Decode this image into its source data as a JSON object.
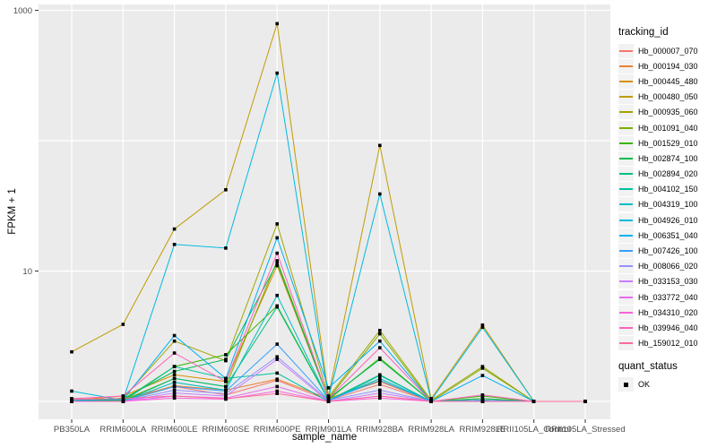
{
  "chart_data": {
    "type": "line",
    "title": "",
    "xlabel": "sample_name",
    "ylabel": "FPKM + 1",
    "y_scale": "log10",
    "ylim": [
      0.72,
      1250
    ],
    "grid": true,
    "y_gridlines": [
      1,
      10,
      100,
      1000
    ],
    "y_axis": {
      "tick_labels": [
        {
          "value": 1000,
          "label": "1000"
        },
        {
          "value": 10,
          "label": "10"
        }
      ]
    },
    "categories": [
      "PB350LA",
      "RRIM600LA",
      "RRIM600LE",
      "RRIM600SE",
      "RRIM600PE",
      "RRIM901LA",
      "RRIM928BA",
      "RRIM928LA",
      "RRIM928LE",
      "RRII105LA_Control",
      "RRII105LA_Stressed"
    ],
    "series": [
      {
        "name": "Hb_000007_070",
        "color": "#F8766D",
        "values": [
          1.02,
          1.05,
          1.3,
          1.12,
          1.45,
          1.02,
          1.35,
          1.0,
          1.02,
          1.0,
          1.0
        ]
      },
      {
        "name": "Hb_000194_030",
        "color": "#EA8331",
        "values": [
          1.0,
          1.02,
          1.32,
          1.22,
          1.48,
          1.05,
          1.42,
          1.0,
          1.0,
          1.0,
          1.0
        ]
      },
      {
        "name": "Hb_000445_480",
        "color": "#D89000",
        "values": [
          1.02,
          1.1,
          1.6,
          1.42,
          11.0,
          1.05,
          1.45,
          1.0,
          1.05,
          1.0,
          1.0
        ]
      },
      {
        "name": "Hb_000480_050",
        "color": "#C09B00",
        "values": [
          2.4,
          3.9,
          21.0,
          42.0,
          790.0,
          1.1,
          92.0,
          1.05,
          3.85,
          1.0,
          1.0
        ]
      },
      {
        "name": "Hb_000935_060",
        "color": "#A3A500",
        "values": [
          1.0,
          1.06,
          2.9,
          2.05,
          23.0,
          1.08,
          3.5,
          1.02,
          1.85,
          1.0,
          1.0
        ]
      },
      {
        "name": "Hb_001091_040",
        "color": "#7CAE00",
        "values": [
          1.0,
          1.02,
          1.5,
          1.3,
          12.0,
          1.05,
          3.3,
          1.0,
          1.8,
          1.0,
          1.0
        ]
      },
      {
        "name": "Hb_001529_010",
        "color": "#39B600",
        "values": [
          1.0,
          1.02,
          1.85,
          2.28,
          5.4,
          1.03,
          2.15,
          1.0,
          1.1,
          1.0,
          1.0
        ]
      },
      {
        "name": "Hb_002874_100",
        "color": "#00BB4E",
        "values": [
          1.0,
          1.05,
          1.7,
          2.1,
          11.5,
          1.05,
          2.1,
          1.0,
          1.05,
          1.0,
          1.0
        ]
      },
      {
        "name": "Hb_002894_020",
        "color": "#00BF7D",
        "values": [
          1.0,
          1.0,
          1.5,
          1.3,
          5.3,
          1.02,
          1.6,
          1.0,
          1.02,
          1.0,
          1.0
        ]
      },
      {
        "name": "Hb_004102_150",
        "color": "#00C1A3",
        "values": [
          1.0,
          1.0,
          1.85,
          1.5,
          1.65,
          1.0,
          1.58,
          1.0,
          1.0,
          1.0,
          1.0
        ]
      },
      {
        "name": "Hb_004319_100",
        "color": "#00BFC4",
        "values": [
          1.0,
          1.0,
          1.4,
          1.22,
          6.5,
          1.02,
          1.5,
          1.0,
          1.0,
          1.0,
          1.0
        ]
      },
      {
        "name": "Hb_004926_010",
        "color": "#00BAE0",
        "values": [
          1.2,
          1.02,
          16.0,
          15.0,
          330.0,
          1.06,
          39.0,
          1.02,
          3.7,
          1.0,
          1.0
        ]
      },
      {
        "name": "Hb_006351_040",
        "color": "#00B0F6",
        "values": [
          1.02,
          1.03,
          3.2,
          1.5,
          18.0,
          1.27,
          2.9,
          1.0,
          1.58,
          1.0,
          1.0
        ]
      },
      {
        "name": "Hb_007426_100",
        "color": "#35A2FF",
        "values": [
          1.0,
          1.0,
          1.3,
          1.2,
          2.75,
          1.02,
          1.45,
          1.0,
          1.02,
          1.0,
          1.0
        ]
      },
      {
        "name": "Hb_008066_020",
        "color": "#9590FF",
        "values": [
          1.0,
          1.0,
          1.22,
          1.15,
          2.2,
          1.02,
          1.22,
          1.0,
          1.0,
          1.0,
          1.0
        ]
      },
      {
        "name": "Hb_033153_030",
        "color": "#C77CFF",
        "values": [
          1.0,
          1.0,
          1.16,
          1.1,
          2.1,
          1.0,
          1.16,
          1.0,
          1.0,
          1.0,
          1.0
        ]
      },
      {
        "name": "Hb_033772_040",
        "color": "#E76BF3",
        "values": [
          1.0,
          1.0,
          1.1,
          1.06,
          1.3,
          1.0,
          1.1,
          1.0,
          1.0,
          1.0,
          1.0
        ]
      },
      {
        "name": "Hb_034310_020",
        "color": "#FA62DB",
        "values": [
          1.0,
          1.0,
          1.06,
          1.04,
          1.2,
          1.0,
          1.06,
          1.0,
          1.0,
          1.0,
          1.0
        ]
      },
      {
        "name": "Hb_039946_040",
        "color": "#FF62BC",
        "values": [
          1.05,
          1.1,
          2.35,
          1.42,
          13.7,
          1.05,
          2.58,
          1.0,
          1.12,
          1.0,
          1.0
        ]
      },
      {
        "name": "Hb_159012_010",
        "color": "#FF6A98",
        "values": [
          1.04,
          1.05,
          1.1,
          1.05,
          1.15,
          1.0,
          1.1,
          1.0,
          1.0,
          1.0,
          1.0
        ]
      }
    ],
    "point_shape": "square",
    "legend": {
      "position": "right",
      "color_title": "tracking_id",
      "shape_title": "quant_status",
      "shape_items": [
        {
          "label": "OK"
        }
      ]
    },
    "colors": {
      "panel": "#EBEBEB",
      "grid": "#FFFFFF",
      "axis_text": "#4D4D4D",
      "tick": "#333333",
      "point": "#000000",
      "key_bg": "#F2F2F2"
    }
  }
}
